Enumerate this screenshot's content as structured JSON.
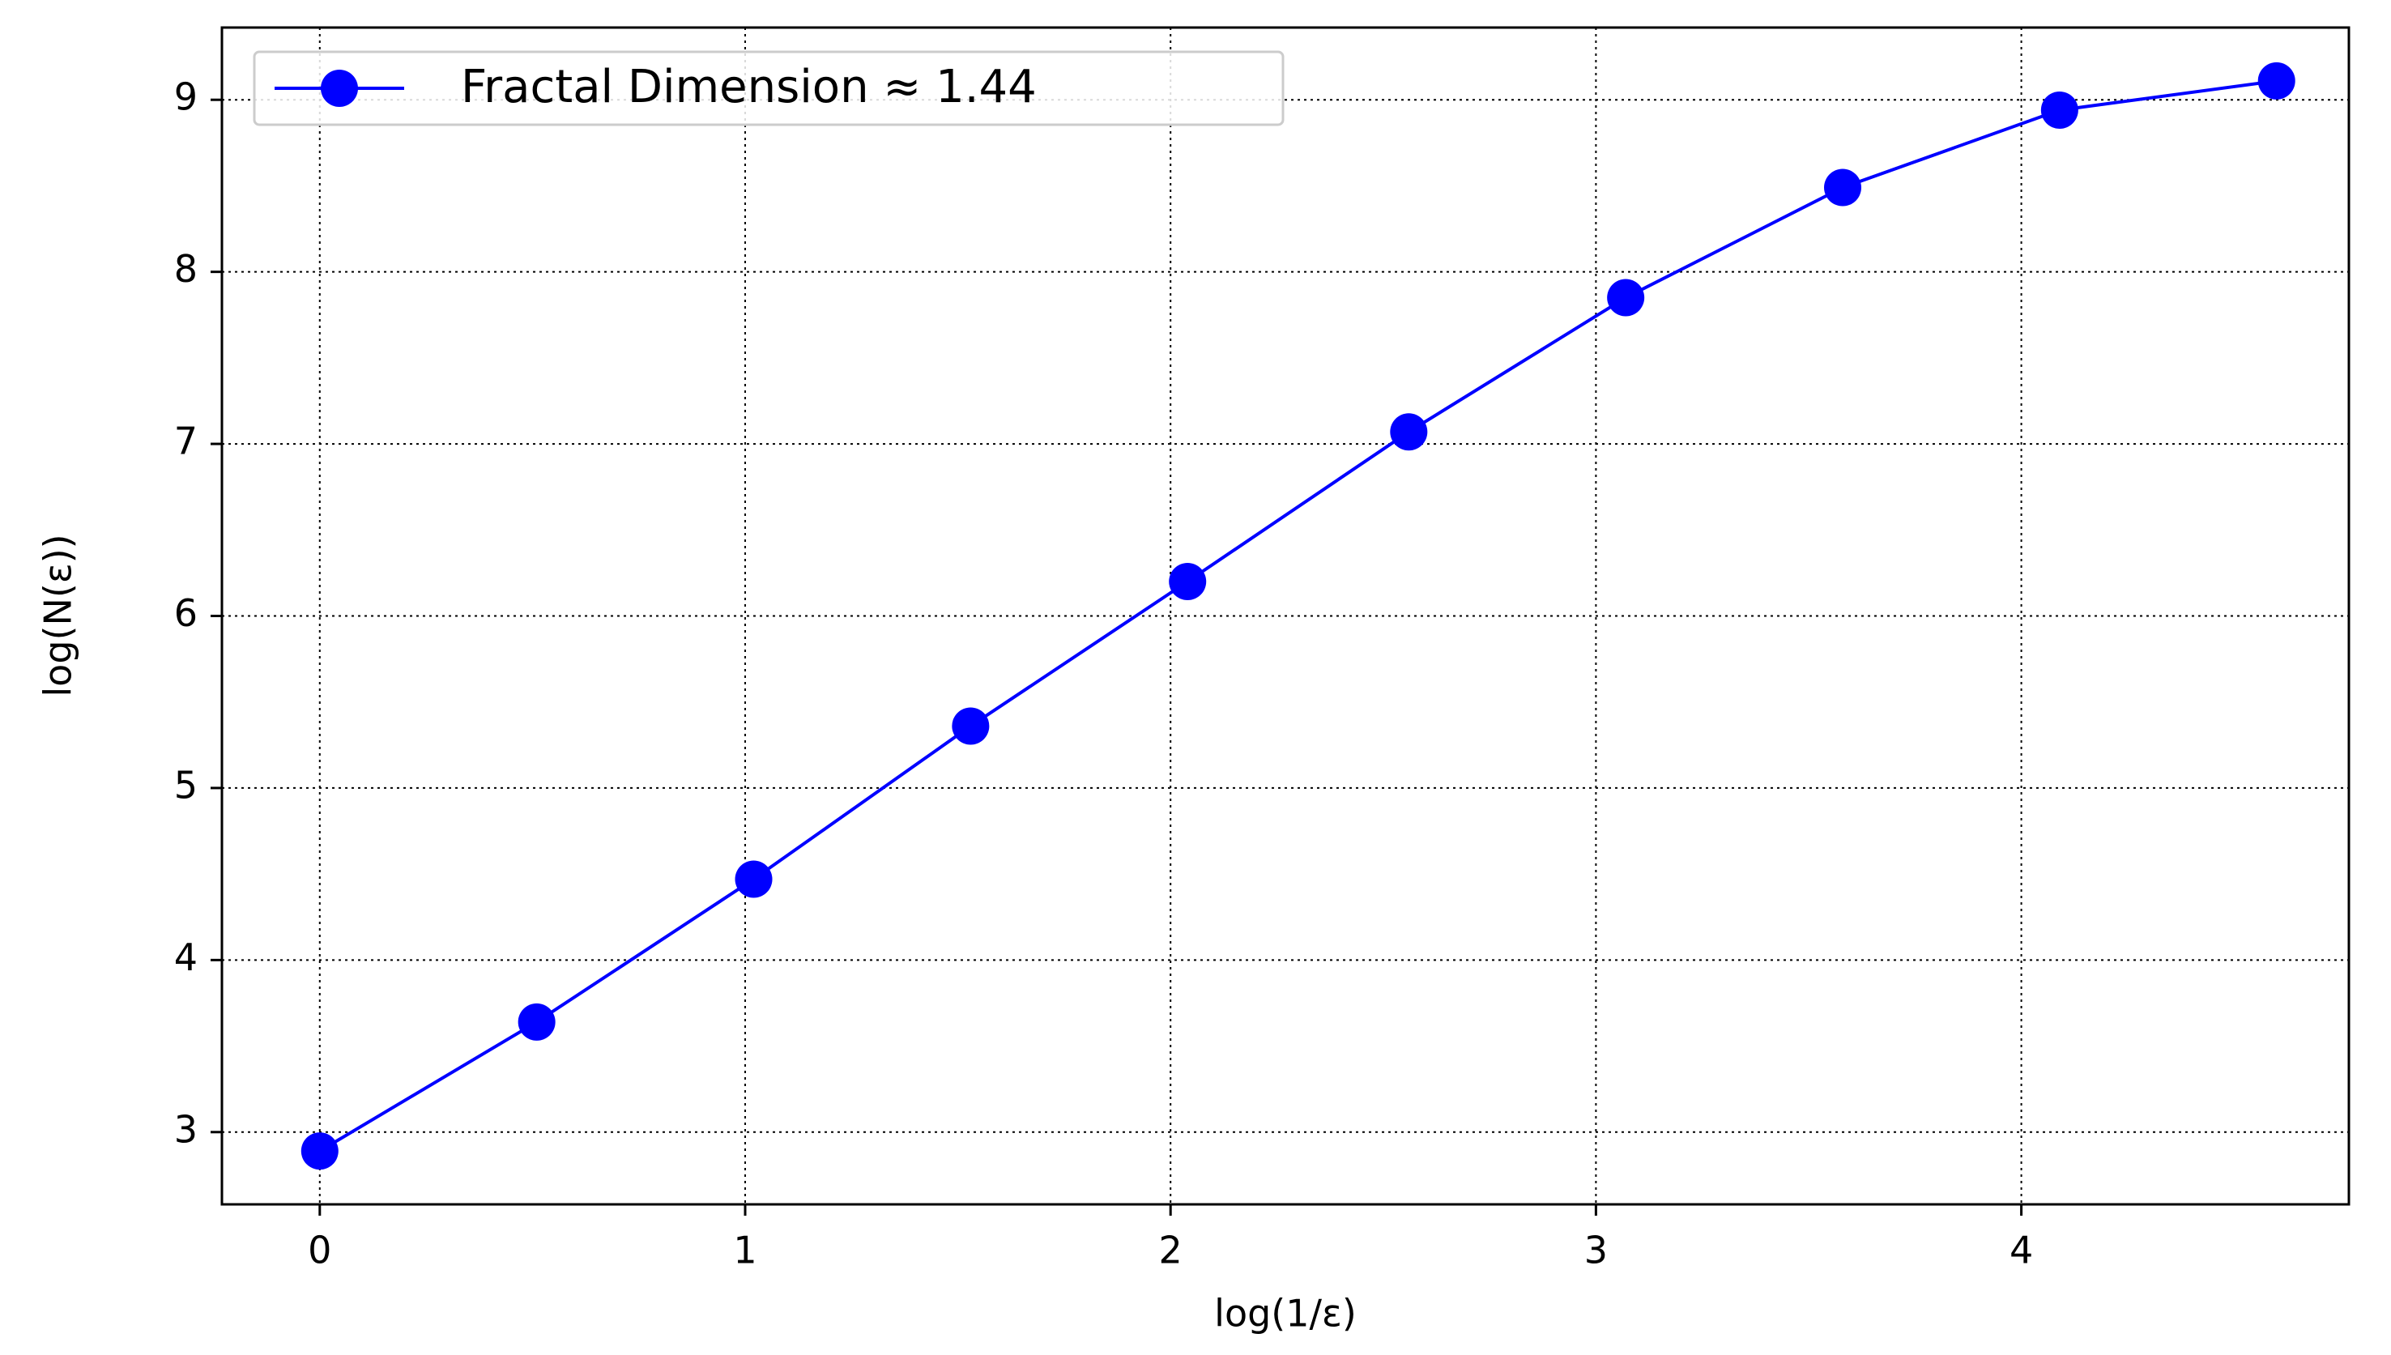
{
  "chart_data": {
    "type": "line",
    "xlabel": "log(1/ε)",
    "ylabel": "log(N(ε))",
    "x": [
      0,
      0.51,
      1.02,
      1.53,
      2.04,
      2.56,
      3.07,
      3.58,
      4.09,
      4.6
    ],
    "series": [
      {
        "name": "Fractal Dimension ≈ 1.44",
        "color": "#0000ff",
        "values": [
          2.89,
          3.64,
          4.47,
          5.36,
          6.2,
          7.07,
          7.85,
          8.49,
          8.94,
          9.11
        ]
      }
    ],
    "xlim": [
      -0.23,
      4.77
    ],
    "xticks": [
      0,
      1,
      2,
      3,
      4
    ],
    "ylim": [
      2.58,
      9.42
    ],
    "yticks": [
      3,
      4,
      5,
      6,
      7,
      8,
      9
    ],
    "grid": true,
    "legend": "upper-left"
  }
}
